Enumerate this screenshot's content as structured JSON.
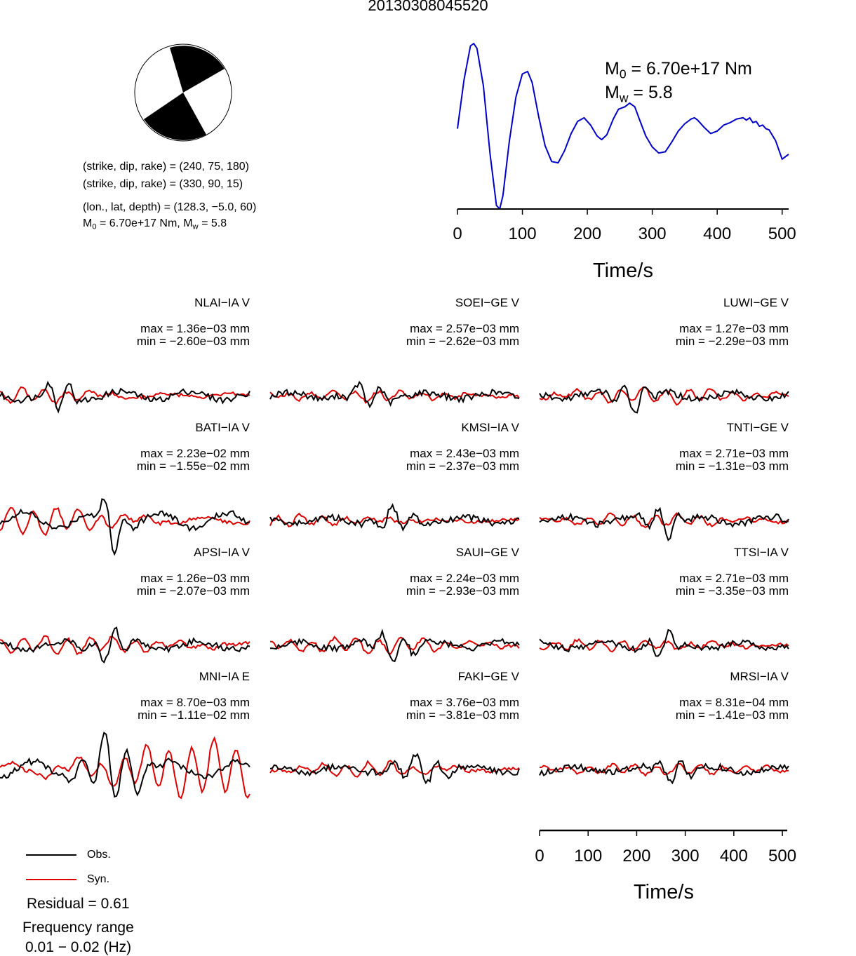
{
  "title": "20130308045520",
  "mechanism": {
    "np1": "(strike, dip, rake) = (240, 75, 180)",
    "np2": "(strike, dip, rake) = (330, 90, 15)",
    "location": "(lon., lat, depth) = (128.3, −5.0, 60)",
    "moment_line_m": "M",
    "moment_line_m_sub": "0",
    "moment_line_mid": " = 6.70e+17 Nm, M",
    "moment_line_w_sub": "w",
    "moment_line_end": " = 5.8"
  },
  "stf_labels": {
    "m0_m": "M",
    "m0_sub": "0",
    "m0_rest": " = 6.70e+17 Nm",
    "mw_m": "M",
    "mw_sub": "w",
    "mw_rest": " = 5.8"
  },
  "legend": {
    "obs": "Obs.",
    "syn": "Syn.",
    "residual": "Residual = 0.61",
    "freq_title": "Frequency range",
    "freq_value": "0.01 − 0.02 (Hz)"
  },
  "colors": {
    "obs": "#000000",
    "syn": "#e00000",
    "stf": "#0000cc"
  },
  "stations": [
    {
      "name": "NLAI−IA V",
      "max": "max = 1.36e−03 mm",
      "min": "min = −2.60e−03 mm"
    },
    {
      "name": "SOEI−GE V",
      "max": "max = 2.57e−03 mm",
      "min": "min = −2.62e−03 mm"
    },
    {
      "name": "LUWI−GE V",
      "max": "max = 1.27e−03 mm",
      "min": "min = −2.29e−03 mm"
    },
    {
      "name": "BATI−IA V",
      "max": "max = 2.23e−02 mm",
      "min": "min = −1.55e−02 mm"
    },
    {
      "name": "KMSI−IA V",
      "max": "max = 2.43e−03 mm",
      "min": "min = −2.37e−03 mm"
    },
    {
      "name": "TNTI−GE V",
      "max": "max = 2.71e−03 mm",
      "min": "min = −1.31e−03 mm"
    },
    {
      "name": "APSI−IA V",
      "max": "max = 1.26e−03 mm",
      "min": "min = −2.07e−03 mm"
    },
    {
      "name": "SAUI−GE V",
      "max": "max = 2.24e−03 mm",
      "min": "min = −2.93e−03 mm"
    },
    {
      "name": "TTSI−IA V",
      "max": "max = 2.71e−03 mm",
      "min": "min = −3.35e−03 mm"
    },
    {
      "name": "MNI−IA E",
      "max": "max = 8.70e−03 mm",
      "min": "min = −1.11e−02 mm"
    },
    {
      "name": "FAKI−GE V",
      "max": "max = 3.76e−03 mm",
      "min": "min = −3.81e−03 mm"
    },
    {
      "name": "MRSI−IA V",
      "max": "max = 8.31e−04 mm",
      "min": "min = −1.41e−03 mm"
    }
  ],
  "chart_data": [
    {
      "type": "line",
      "title": "",
      "xlabel": "Time/s",
      "ylabel": "",
      "xlim": [
        0,
        510
      ],
      "xticks": [
        "0",
        "100",
        "200",
        "300",
        "400",
        "500"
      ],
      "series": [
        {
          "x": [
            0,
            10,
            20,
            25,
            30,
            40,
            50,
            60,
            65,
            70,
            80,
            90,
            100,
            108,
            115,
            125,
            135,
            145,
            155,
            165,
            175,
            185,
            195,
            205,
            215,
            222,
            230,
            240,
            248,
            258,
            265,
            273,
            280,
            290,
            300,
            310,
            320,
            330,
            340,
            350,
            360,
            365,
            370,
            380,
            390,
            400,
            410,
            420,
            430,
            440,
            445,
            450,
            455,
            460,
            465,
            470,
            475,
            480,
            490,
            500,
            505,
            510
          ],
          "y": [
            0.3,
            0.7,
            0.98,
            1.0,
            0.96,
            0.65,
            0.1,
            -0.33,
            -0.36,
            -0.25,
            0.2,
            0.56,
            0.75,
            0.77,
            0.68,
            0.4,
            0.16,
            0.03,
            0.02,
            0.12,
            0.26,
            0.36,
            0.39,
            0.33,
            0.24,
            0.21,
            0.25,
            0.38,
            0.46,
            0.48,
            0.51,
            0.48,
            0.38,
            0.24,
            0.15,
            0.1,
            0.11,
            0.19,
            0.28,
            0.34,
            0.38,
            0.39,
            0.37,
            0.31,
            0.26,
            0.28,
            0.33,
            0.35,
            0.38,
            0.39,
            0.37,
            0.39,
            0.35,
            0.36,
            0.32,
            0.33,
            0.3,
            0.29,
            0.2,
            0.05,
            0.07,
            0.09
          ]
        }
      ]
    },
    {
      "type": "line",
      "title": "",
      "xlabel": "Time/s",
      "ylabel": "",
      "xlim": [
        0,
        510
      ],
      "xticks": [
        "0",
        "100",
        "200",
        "300",
        "400",
        "500"
      ],
      "series": [
        {
          "name": "Obs."
        },
        {
          "name": "Syn."
        }
      ]
    }
  ]
}
